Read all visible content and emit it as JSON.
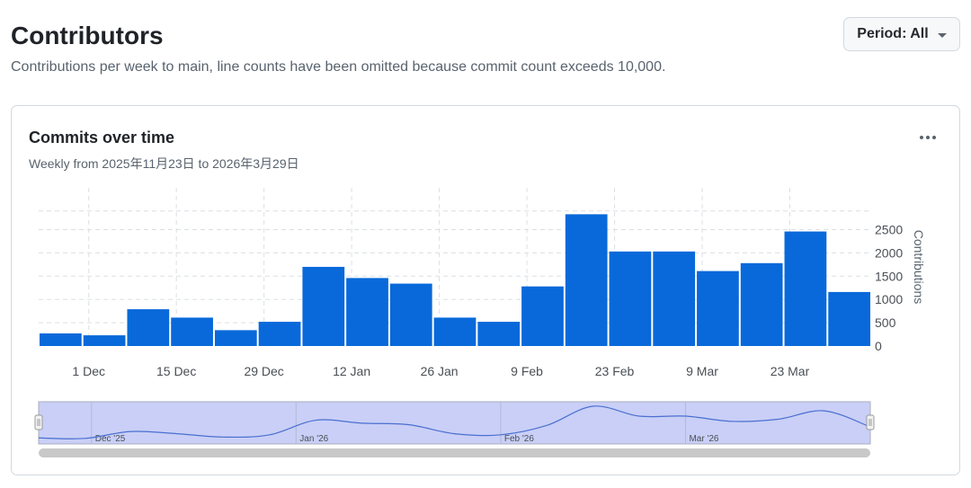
{
  "header": {
    "title": "Contributors",
    "subtitle": "Contributions per week to main, line counts have been omitted because commit count exceeds 10,000.",
    "period_label": "Period: All"
  },
  "card": {
    "title": "Commits over time",
    "subtitle": "Weekly from 2025年11月23日 to 2026年3月29日"
  },
  "navigator": {
    "labels": [
      "Dec '25",
      "Jan '26",
      "Feb '26",
      "Mar '26"
    ]
  },
  "colors": {
    "bar": "#0969da",
    "navigator_fill": "#c9cff6",
    "navigator_line": "#4a6fd0"
  },
  "icons": {
    "period_caret": "caret-down-icon",
    "card_menu": "kebab-menu-icon"
  },
  "chart_data": {
    "type": "bar",
    "title": "Commits over time",
    "ylabel": "Contributions",
    "xlabel": "",
    "ylim": [
      0,
      2900
    ],
    "yticks": [
      0,
      500,
      1000,
      1500,
      2000,
      2500
    ],
    "y_axis_side": "right",
    "grid": true,
    "categories": [
      "2025-11-23",
      "2025-11-30",
      "2025-12-07",
      "2025-12-14",
      "2025-12-21",
      "2025-12-28",
      "2026-01-04",
      "2026-01-11",
      "2026-01-18",
      "2026-01-25",
      "2026-02-01",
      "2026-02-08",
      "2026-02-15",
      "2026-02-22",
      "2026-03-01",
      "2026-03-08",
      "2026-03-15",
      "2026-03-22",
      "2026-03-29"
    ],
    "values": [
      270,
      230,
      790,
      610,
      340,
      520,
      1700,
      1460,
      1340,
      610,
      520,
      1280,
      2830,
      2030,
      2030,
      1610,
      1780,
      2460,
      1160
    ],
    "xticks": [
      {
        "label": "1 Dec",
        "date": "2025-12-01"
      },
      {
        "label": "15 Dec",
        "date": "2025-12-15"
      },
      {
        "label": "29 Dec",
        "date": "2025-12-29"
      },
      {
        "label": "12 Jan",
        "date": "2026-01-12"
      },
      {
        "label": "26 Jan",
        "date": "2026-01-26"
      },
      {
        "label": "9 Feb",
        "date": "2026-02-09"
      },
      {
        "label": "23 Feb",
        "date": "2026-02-23"
      },
      {
        "label": "9 Mar",
        "date": "2026-03-09"
      },
      {
        "label": "23 Mar",
        "date": "2026-03-23"
      }
    ]
  }
}
